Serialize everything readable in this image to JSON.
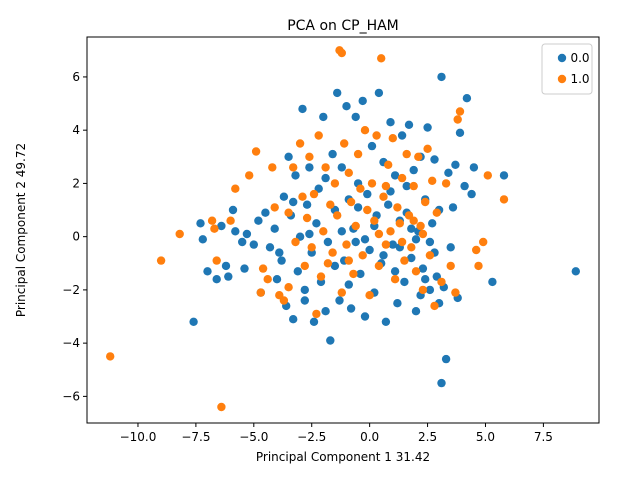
{
  "chart_data": {
    "type": "scatter",
    "title": "PCA on CP_HAM",
    "xlabel": "Principal Component 1 31.42",
    "ylabel": "Principal Component 2 49.72",
    "xlim": [
      -12.2,
      9.9
    ],
    "ylim": [
      -7.0,
      7.5
    ],
    "xticks": [
      -10.0,
      -7.5,
      -5.0,
      -2.5,
      0.0,
      2.5,
      5.0,
      7.5
    ],
    "xtick_labels": [
      "−10.0",
      "−7.5",
      "−5.0",
      "−2.5",
      "0.0",
      "2.5",
      "5.0",
      "7.5"
    ],
    "yticks": [
      -6,
      -4,
      -2,
      0,
      2,
      4,
      6
    ],
    "ytick_labels": [
      "−6",
      "−4",
      "−2",
      "0",
      "2",
      "4",
      "6"
    ],
    "grid": false,
    "legend_position": "top-right",
    "series": [
      {
        "name": "0.0",
        "color": "#1f77b4",
        "points": [
          [
            -7.6,
            -3.2
          ],
          [
            -7.3,
            0.5
          ],
          [
            -7.2,
            -0.1
          ],
          [
            -7.0,
            -1.3
          ],
          [
            -6.6,
            -1.6
          ],
          [
            -6.4,
            0.4
          ],
          [
            -6.2,
            -1.1
          ],
          [
            -6.1,
            -1.5
          ],
          [
            -5.9,
            1.0
          ],
          [
            -5.8,
            0.2
          ],
          [
            -5.5,
            -0.2
          ],
          [
            -5.4,
            -1.2
          ],
          [
            -5.3,
            0.1
          ],
          [
            -5.0,
            -0.3
          ],
          [
            -4.7,
            -2.1
          ],
          [
            -4.5,
            0.9
          ],
          [
            -4.3,
            -0.4
          ],
          [
            -4.1,
            0.3
          ],
          [
            -4.0,
            -1.6
          ],
          [
            -3.8,
            -0.9
          ],
          [
            -3.7,
            1.5
          ],
          [
            -3.6,
            -2.6
          ],
          [
            -3.5,
            3.0
          ],
          [
            -3.4,
            0.8
          ],
          [
            -3.3,
            -3.1
          ],
          [
            -3.2,
            2.3
          ],
          [
            -3.1,
            -1.3
          ],
          [
            -3.0,
            0.0
          ],
          [
            -2.9,
            4.8
          ],
          [
            -2.8,
            -2.0
          ],
          [
            -2.7,
            1.2
          ],
          [
            -2.6,
            2.6
          ],
          [
            -2.5,
            -0.6
          ],
          [
            -2.4,
            -3.2
          ],
          [
            -2.3,
            0.5
          ],
          [
            -2.2,
            1.8
          ],
          [
            -2.1,
            -1.7
          ],
          [
            -2.0,
            4.5
          ],
          [
            -1.9,
            2.2
          ],
          [
            -1.8,
            -0.2
          ],
          [
            -1.7,
            -3.9
          ],
          [
            -1.6,
            3.1
          ],
          [
            -1.5,
            1.0
          ],
          [
            -1.4,
            5.4
          ],
          [
            -1.3,
            -2.4
          ],
          [
            -1.2,
            2.6
          ],
          [
            -1.1,
            -0.9
          ],
          [
            -1.0,
            4.9
          ],
          [
            -0.9,
            1.4
          ],
          [
            -0.8,
            -2.7
          ],
          [
            -0.7,
            0.3
          ],
          [
            -0.6,
            4.5
          ],
          [
            -0.5,
            2.0
          ],
          [
            -0.4,
            -1.4
          ],
          [
            -0.3,
            5.1
          ],
          [
            -0.2,
            -3.0
          ],
          [
            -0.1,
            1.6
          ],
          [
            0.0,
            -0.5
          ],
          [
            0.1,
            3.4
          ],
          [
            0.2,
            -2.1
          ],
          [
            0.3,
            0.8
          ],
          [
            0.4,
            5.4
          ],
          [
            0.5,
            -1.0
          ],
          [
            0.6,
            2.8
          ],
          [
            0.7,
            -3.2
          ],
          [
            0.8,
            1.2
          ],
          [
            0.9,
            4.3
          ],
          [
            1.0,
            -0.3
          ],
          [
            1.1,
            2.3
          ],
          [
            1.2,
            -2.5
          ],
          [
            1.3,
            0.6
          ],
          [
            1.4,
            3.8
          ],
          [
            1.5,
            -1.7
          ],
          [
            1.6,
            1.9
          ],
          [
            1.7,
            4.2
          ],
          [
            1.8,
            -0.8
          ],
          [
            1.9,
            2.5
          ],
          [
            2.0,
            -2.8
          ],
          [
            2.1,
            0.2
          ],
          [
            2.2,
            3.0
          ],
          [
            2.3,
            -1.2
          ],
          [
            2.4,
            1.4
          ],
          [
            2.5,
            4.1
          ],
          [
            2.6,
            -2.0
          ],
          [
            2.7,
            0.5
          ],
          [
            2.8,
            2.9
          ],
          [
            2.9,
            -1.5
          ],
          [
            3.0,
            1.0
          ],
          [
            3.1,
            6.0
          ],
          [
            3.1,
            -5.5
          ],
          [
            3.3,
            -4.6
          ],
          [
            3.4,
            2.4
          ],
          [
            3.5,
            -0.4
          ],
          [
            3.6,
            1.1
          ],
          [
            3.7,
            2.7
          ],
          [
            3.8,
            -2.3
          ],
          [
            3.9,
            3.9
          ],
          [
            4.1,
            1.9
          ],
          [
            4.2,
            5.2
          ],
          [
            4.4,
            1.6
          ],
          [
            4.5,
            2.6
          ],
          [
            5.3,
            -1.7
          ],
          [
            5.8,
            2.3
          ],
          [
            8.9,
            -1.3
          ],
          [
            -2.8,
            -2.4
          ],
          [
            -1.5,
            -1.1
          ],
          [
            -0.6,
            -0.2
          ],
          [
            0.2,
            0.4
          ],
          [
            1.1,
            -1.3
          ],
          [
            2.0,
            -0.1
          ],
          [
            2.8,
            -0.6
          ],
          [
            3.2,
            -1.9
          ],
          [
            -3.9,
            -0.6
          ],
          [
            -2.6,
            0.1
          ],
          [
            -1.9,
            -2.8
          ],
          [
            -0.9,
            -1.8
          ],
          [
            0.6,
            -0.7
          ],
          [
            1.6,
            0.9
          ],
          [
            2.4,
            -1.6
          ],
          [
            3.0,
            -2.5
          ],
          [
            -4.8,
            0.6
          ],
          [
            -3.3,
            1.3
          ],
          [
            -1.2,
            0.2
          ],
          [
            -0.2,
            -0.1
          ],
          [
            1.3,
            -0.4
          ],
          [
            2.2,
            -2.2
          ],
          [
            0.9,
            1.7
          ],
          [
            -0.5,
            1.1
          ],
          [
            1.8,
            0.3
          ],
          [
            2.6,
            -0.2
          ]
        ]
      },
      {
        "name": "1.0",
        "color": "#ff7f0e",
        "points": [
          [
            -11.2,
            -4.5
          ],
          [
            -9.0,
            -0.9
          ],
          [
            -8.2,
            0.1
          ],
          [
            -6.8,
            0.6
          ],
          [
            -6.7,
            0.3
          ],
          [
            -6.6,
            -0.9
          ],
          [
            -6.4,
            -6.4
          ],
          [
            -6.0,
            0.6
          ],
          [
            -5.8,
            1.8
          ],
          [
            -5.2,
            2.3
          ],
          [
            -4.9,
            3.2
          ],
          [
            -4.7,
            -2.1
          ],
          [
            -4.6,
            -1.2
          ],
          [
            -4.4,
            -1.6
          ],
          [
            -4.2,
            2.6
          ],
          [
            -4.1,
            1.1
          ],
          [
            -3.9,
            -2.2
          ],
          [
            -3.7,
            -2.4
          ],
          [
            -3.5,
            0.9
          ],
          [
            -3.3,
            2.6
          ],
          [
            -3.2,
            -0.2
          ],
          [
            -3.0,
            3.5
          ],
          [
            -2.9,
            1.5
          ],
          [
            -2.8,
            -1.1
          ],
          [
            -2.7,
            0.7
          ],
          [
            -2.6,
            3.0
          ],
          [
            -2.5,
            -0.4
          ],
          [
            -2.4,
            1.6
          ],
          [
            -2.3,
            -2.9
          ],
          [
            -2.2,
            3.8
          ],
          [
            -2.0,
            0.2
          ],
          [
            -1.9,
            2.6
          ],
          [
            -1.8,
            -1.0
          ],
          [
            -1.7,
            1.2
          ],
          [
            -1.6,
            -0.6
          ],
          [
            -1.5,
            2.0
          ],
          [
            -1.4,
            0.8
          ],
          [
            -1.3,
            7.0
          ],
          [
            -1.2,
            6.9
          ],
          [
            -1.1,
            3.5
          ],
          [
            -1.0,
            -0.3
          ],
          [
            -0.9,
            2.4
          ],
          [
            -0.8,
            1.3
          ],
          [
            -0.7,
            -1.4
          ],
          [
            -0.6,
            0.4
          ],
          [
            -0.5,
            3.1
          ],
          [
            -0.4,
            1.8
          ],
          [
            -0.3,
            -0.7
          ],
          [
            -0.2,
            4.0
          ],
          [
            -0.1,
            1.0
          ],
          [
            0.0,
            -2.2
          ],
          [
            0.1,
            2.0
          ],
          [
            0.2,
            0.6
          ],
          [
            0.3,
            3.8
          ],
          [
            0.4,
            -1.1
          ],
          [
            0.5,
            6.7
          ],
          [
            0.6,
            1.5
          ],
          [
            0.7,
            -0.3
          ],
          [
            0.8,
            2.7
          ],
          [
            0.9,
            0.2
          ],
          [
            1.0,
            3.7
          ],
          [
            1.1,
            -1.6
          ],
          [
            1.2,
            1.1
          ],
          [
            1.3,
            0.5
          ],
          [
            1.4,
            2.2
          ],
          [
            1.5,
            -0.9
          ],
          [
            1.6,
            3.1
          ],
          [
            1.7,
            0.8
          ],
          [
            1.8,
            -0.4
          ],
          [
            1.9,
            1.9
          ],
          [
            2.0,
            -1.3
          ],
          [
            2.1,
            3.0
          ],
          [
            2.2,
            0.4
          ],
          [
            2.3,
            -2.0
          ],
          [
            2.4,
            1.3
          ],
          [
            2.5,
            3.3
          ],
          [
            2.6,
            -0.7
          ],
          [
            2.7,
            2.1
          ],
          [
            2.8,
            -2.6
          ],
          [
            2.9,
            0.9
          ],
          [
            3.1,
            -1.7
          ],
          [
            3.3,
            2.0
          ],
          [
            3.5,
            -1.1
          ],
          [
            3.7,
            -2.1
          ],
          [
            3.8,
            4.4
          ],
          [
            3.9,
            4.7
          ],
          [
            4.6,
            -0.5
          ],
          [
            4.7,
            -1.1
          ],
          [
            4.9,
            -0.2
          ],
          [
            5.1,
            2.3
          ],
          [
            5.8,
            1.4
          ],
          [
            -3.5,
            -1.9
          ],
          [
            -2.1,
            -1.5
          ],
          [
            -0.9,
            -0.9
          ],
          [
            0.4,
            0.1
          ],
          [
            1.4,
            -0.2
          ],
          [
            2.3,
            0.1
          ],
          [
            -1.2,
            -2.1
          ],
          [
            0.7,
            1.9
          ],
          [
            1.9,
            0.6
          ]
        ]
      }
    ]
  }
}
